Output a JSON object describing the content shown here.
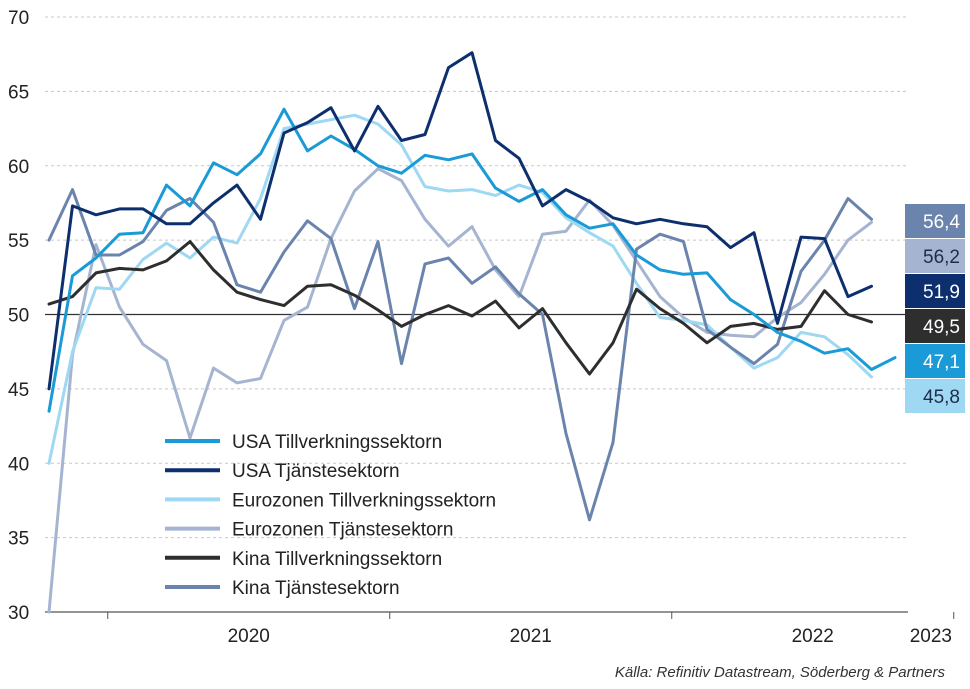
{
  "chart_data": {
    "type": "line",
    "ylim": [
      30,
      70
    ],
    "yticks": [
      "30",
      "35",
      "40",
      "45",
      "50",
      "55",
      "60",
      "65",
      "70"
    ],
    "year_labels": [
      "2020",
      "2021",
      "2022",
      "2023"
    ],
    "reference_line": 50,
    "grid": "horizontal dashed",
    "legend_placement": "lower-left",
    "source": "Källa: Refinitiv Datastream, Söderberg & Partners",
    "months": [
      "2019-10",
      "2019-11",
      "2019-12",
      "2020-01",
      "2020-02",
      "2020-03",
      "2020-04",
      "2020-05",
      "2020-06",
      "2020-07",
      "2020-08",
      "2020-09",
      "2020-10",
      "2020-11",
      "2020-12",
      "2021-01",
      "2021-02",
      "2021-03",
      "2021-04",
      "2021-05",
      "2021-06",
      "2021-07",
      "2021-08",
      "2021-09",
      "2021-10",
      "2021-11",
      "2021-12",
      "2022-01",
      "2022-02",
      "2022-03",
      "2022-04",
      "2022-05",
      "2022-06",
      "2022-07",
      "2022-08",
      "2022-09",
      "2022-10",
      "2022-11",
      "2022-12",
      "2023-01",
      "2023-02",
      "2023-03",
      "2023-04"
    ],
    "series": [
      {
        "name": "USA Tillverkningssektorn",
        "color": "#1a9ad6",
        "end_label": "47,1",
        "values": [
          43.5,
          52.6,
          53.8,
          55.4,
          55.5,
          58.7,
          57.3,
          60.2,
          59.4,
          60.8,
          63.8,
          61.0,
          62.0,
          61.1,
          60.0,
          59.5,
          60.7,
          60.4,
          60.8,
          58.5,
          57.6,
          58.4,
          56.7,
          55.8,
          56.1,
          54.0,
          53.0,
          52.7,
          52.8,
          51.0,
          50.0,
          48.8,
          48.2,
          47.4,
          47.7,
          46.3,
          47.1
        ]
      },
      {
        "name": "USA Tjänstesektorn",
        "color": "#0d2f6e",
        "end_label": "51,9",
        "values": [
          45.0,
          57.3,
          56.7,
          57.1,
          57.1,
          56.1,
          56.1,
          57.5,
          58.7,
          56.4,
          62.2,
          62.9,
          63.9,
          61.0,
          64.0,
          61.7,
          62.1,
          66.6,
          67.6,
          61.7,
          60.5,
          57.3,
          58.4,
          57.6,
          56.5,
          56.1,
          56.4,
          56.1,
          55.9,
          54.5,
          55.5,
          49.4,
          55.2,
          55.1,
          51.2,
          51.9
        ]
      },
      {
        "name": "Eurozonen Tillverkningssektorn",
        "color": "#9ed8f2",
        "end_label": "45,8",
        "values": [
          40.0,
          47.5,
          51.8,
          51.7,
          53.7,
          54.8,
          53.8,
          55.2,
          54.8,
          57.8,
          62.5,
          62.8,
          63.1,
          63.4,
          62.8,
          61.4,
          58.6,
          58.3,
          58.4,
          58.0,
          58.7,
          58.2,
          56.5,
          55.5,
          54.6,
          52.1,
          49.8,
          49.6,
          49.3,
          47.8,
          46.4,
          47.1,
          48.8,
          48.5,
          47.3,
          45.8
        ]
      },
      {
        "name": "Eurozonen Tjänstesektorn",
        "color": "#a5b5d1",
        "end_label": "56,2",
        "values": [
          30.0,
          47.3,
          54.7,
          50.5,
          48.0,
          46.9,
          41.7,
          46.4,
          45.4,
          45.7,
          49.6,
          50.5,
          55.1,
          58.3,
          59.8,
          59.0,
          56.4,
          54.6,
          55.9,
          53.0,
          51.2,
          55.4,
          55.6,
          57.7,
          56.0,
          53.6,
          51.2,
          49.8,
          48.8,
          48.6,
          48.5,
          49.8,
          50.8,
          52.7,
          55.0,
          56.2
        ]
      },
      {
        "name": "Kina Tillverkningssektorn",
        "color": "#2e2e2e",
        "end_label": "49,5",
        "values": [
          50.7,
          51.2,
          52.8,
          53.1,
          53.0,
          53.6,
          54.9,
          53.0,
          51.5,
          51.0,
          50.6,
          51.9,
          52.0,
          51.3,
          50.3,
          49.2,
          50.0,
          50.6,
          49.9,
          50.9,
          49.1,
          50.4,
          48.1,
          46.0,
          48.1,
          51.7,
          50.4,
          49.4,
          48.1,
          49.2,
          49.4,
          49.0,
          49.2,
          51.6,
          50.0,
          49.5
        ]
      },
      {
        "name": "Kina Tjänstesektorn",
        "color": "#6b84ad",
        "end_label": "56,4",
        "values": [
          55.0,
          58.4,
          54.0,
          54.0,
          54.9,
          57.0,
          57.8,
          56.2,
          52.0,
          51.5,
          54.2,
          56.3,
          55.1,
          50.4,
          54.9,
          46.7,
          53.4,
          53.8,
          52.1,
          53.2,
          51.4,
          50.0,
          42.0,
          36.2,
          41.4,
          54.4,
          55.4,
          54.9,
          49.0,
          47.8,
          46.7,
          48.0,
          52.9,
          55.0,
          57.8,
          56.4
        ]
      }
    ]
  }
}
